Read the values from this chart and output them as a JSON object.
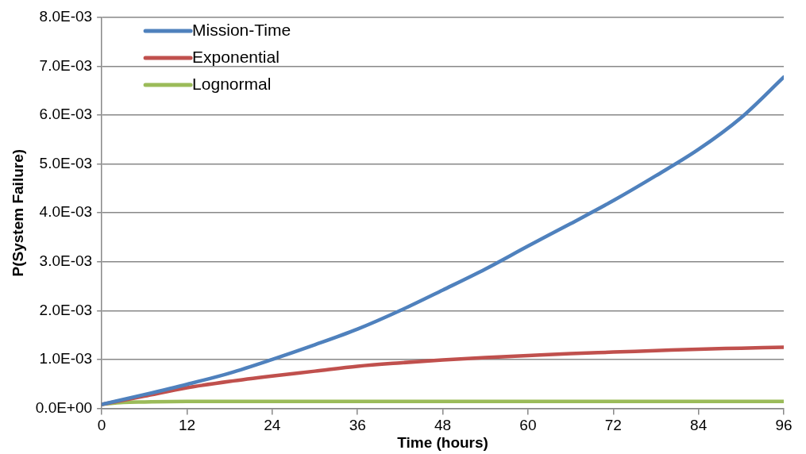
{
  "chart_data": {
    "type": "line",
    "xlabel": "Time (hours)",
    "ylabel": "P(System Failure)",
    "xlim": [
      0,
      96
    ],
    "xticks": [
      0,
      12,
      24,
      36,
      48,
      60,
      72,
      84,
      96
    ],
    "ylim": [
      0,
      0.008
    ],
    "yticks": [
      {
        "value": 0,
        "label": "0.0E+00"
      },
      {
        "value": 0.001,
        "label": "1.0E-03"
      },
      {
        "value": 0.002,
        "label": "2.0E-03"
      },
      {
        "value": 0.003,
        "label": "3.0E-03"
      },
      {
        "value": 0.004,
        "label": "4.0E-03"
      },
      {
        "value": 0.005,
        "label": "5.0E-03"
      },
      {
        "value": 0.006,
        "label": "6.0E-03"
      },
      {
        "value": 0.007,
        "label": "7.0E-03"
      },
      {
        "value": 0.008,
        "label": "8.0E-03"
      }
    ],
    "grid": "y",
    "legend": "top left",
    "marker": "none",
    "line_style": "solid",
    "series": [
      {
        "name": "Mission-Time",
        "color": "#4f81bd",
        "x": [
          0,
          6,
          12,
          18,
          24,
          30,
          36,
          42,
          48,
          54,
          60,
          66,
          72,
          78,
          84,
          90,
          96
        ],
        "values": [
          8e-05,
          0.00028,
          0.00049,
          0.00072,
          0.001,
          0.0013,
          0.00162,
          0.002,
          0.00242,
          0.00285,
          0.00332,
          0.00378,
          0.00425,
          0.00476,
          0.0053,
          0.00595,
          0.00678
        ]
      },
      {
        "name": "Exponential",
        "color": "#c0504d",
        "x": [
          0,
          6,
          12,
          18,
          24,
          30,
          36,
          42,
          48,
          54,
          60,
          66,
          72,
          78,
          84,
          90,
          96
        ],
        "values": [
          8e-05,
          0.00025,
          0.00042,
          0.00055,
          0.00066,
          0.00076,
          0.00086,
          0.00093,
          0.00099,
          0.00104,
          0.00108,
          0.00112,
          0.00115,
          0.00118,
          0.00121,
          0.00123,
          0.00125
        ]
      },
      {
        "name": "Lognormal",
        "color": "#9bbb59",
        "x": [
          0,
          3,
          6,
          12,
          24,
          48,
          72,
          96
        ],
        "values": [
          8e-05,
          0.00012,
          0.00013,
          0.00014,
          0.00014,
          0.00014,
          0.00014,
          0.00014
        ]
      }
    ]
  }
}
